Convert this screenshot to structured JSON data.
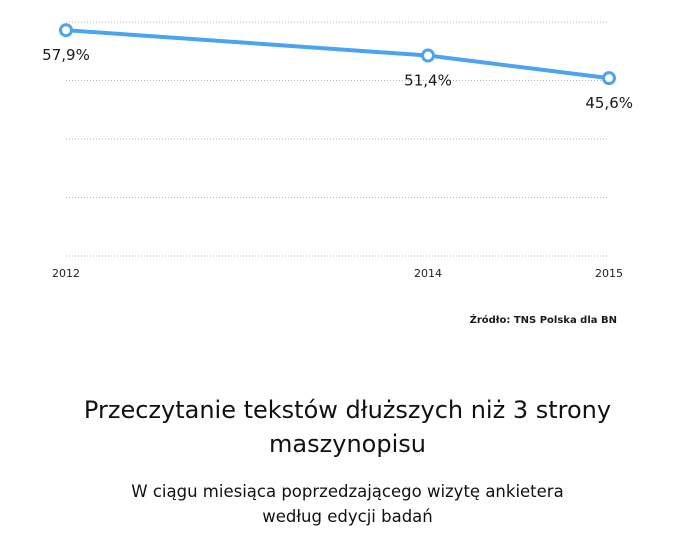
{
  "chart_data": {
    "type": "line",
    "x": [
      "2012",
      "2014",
      "2015"
    ],
    "series": [
      {
        "values": [
          57.9,
          51.4,
          45.6
        ]
      }
    ],
    "data_labels": [
      "57,9%",
      "51,4%",
      "45,6%"
    ],
    "ylim": [
      0,
      60
    ],
    "grid": true,
    "line_color": "#4da3f0"
  },
  "source": "Źródło: TNS Polska dla BN",
  "title_lines": [
    "Przeczytanie tekstów dłuższych niż 3 strony",
    "maszynopisu"
  ],
  "subtitle_lines": [
    "W ciągu miesiąca poprzedzającego wizytę ankietera",
    "według edycji badań"
  ]
}
